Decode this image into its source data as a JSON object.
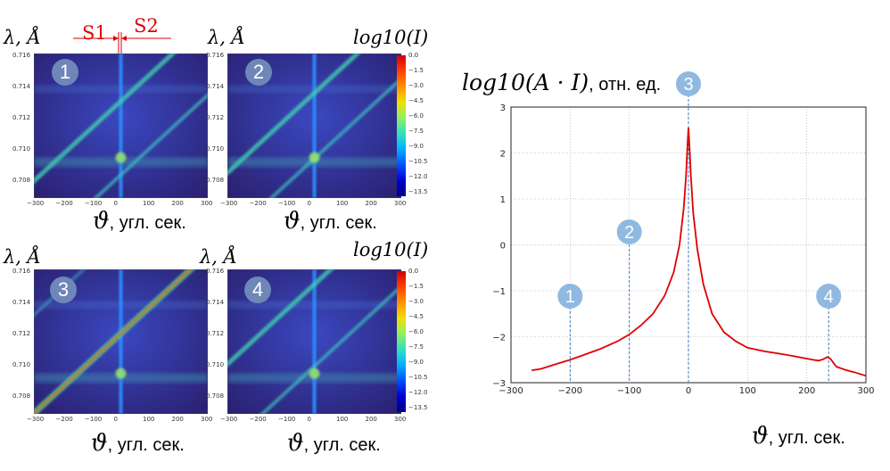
{
  "labels": {
    "lambda_axis": "λ, Å",
    "log_intensity": "log10(I)",
    "theta_axis": "ϑ",
    "theta_unit": ", угл. сек.",
    "right_ylabel_math": "log10(A · I)",
    "right_ylabel_unit": ", отн. ед.",
    "s1": "S1",
    "s2": "S2"
  },
  "panels": [
    {
      "id": "1"
    },
    {
      "id": "2"
    },
    {
      "id": "3"
    },
    {
      "id": "4"
    }
  ],
  "panel_axes": {
    "y_ticks": [
      "0.716",
      "0.714",
      "0.712",
      "0.710",
      "0.708"
    ],
    "x_ticks": [
      "−300",
      "−200",
      "−100",
      "0",
      "100",
      "200",
      "300"
    ]
  },
  "colorbar": {
    "ticks": [
      "0.0",
      "−1.5",
      "−3.0",
      "−4.5",
      "−6.0",
      "−7.5",
      "−9.0",
      "−10.5",
      "−12.0",
      "−13.5"
    ],
    "colors": [
      "#d40000",
      "#ff4000",
      "#ff9000",
      "#f0e000",
      "#90f060",
      "#30e0c0",
      "#00b0ff",
      "#0050ff",
      "#0000d0",
      "#00008a"
    ]
  },
  "chart_data": {
    "type": "line",
    "xlim": [
      -300,
      300
    ],
    "ylim": [
      -3,
      3
    ],
    "x_ticks": [
      -300,
      -200,
      -100,
      0,
      100,
      200,
      300
    ],
    "y_ticks": [
      -3,
      -2,
      -1,
      0,
      1,
      2,
      3
    ],
    "x_tick_labels": [
      "−300",
      "−200",
      "−100",
      "0",
      "100",
      "200",
      "300"
    ],
    "y_tick_labels": [
      "−3",
      "−2",
      "−1",
      "0",
      "1",
      "2",
      "3"
    ],
    "grid": true,
    "series": [
      {
        "color": "#e00000",
        "x": [
          -265,
          -250,
          -220,
          -200,
          -180,
          -150,
          -120,
          -100,
          -80,
          -60,
          -40,
          -25,
          -15,
          -8,
          -4,
          -2,
          0,
          2,
          4,
          8,
          15,
          25,
          40,
          60,
          80,
          100,
          130,
          160,
          190,
          210,
          220,
          228,
          235,
          240,
          250,
          265,
          280,
          300
        ],
        "y": [
          -2.73,
          -2.7,
          -2.58,
          -2.5,
          -2.41,
          -2.27,
          -2.1,
          -1.95,
          -1.75,
          -1.5,
          -1.1,
          -0.6,
          0.0,
          0.8,
          1.5,
          2.1,
          2.55,
          2.1,
          1.5,
          0.7,
          -0.1,
          -0.85,
          -1.5,
          -1.9,
          -2.1,
          -2.24,
          -2.32,
          -2.38,
          -2.45,
          -2.5,
          -2.52,
          -2.49,
          -2.44,
          -2.48,
          -2.65,
          -2.72,
          -2.77,
          -2.85
        ]
      }
    ],
    "markers": [
      {
        "label": "1",
        "x": -200
      },
      {
        "label": "2",
        "x": -100
      },
      {
        "label": "3",
        "x": 0
      },
      {
        "label": "4",
        "x": 237
      }
    ]
  }
}
